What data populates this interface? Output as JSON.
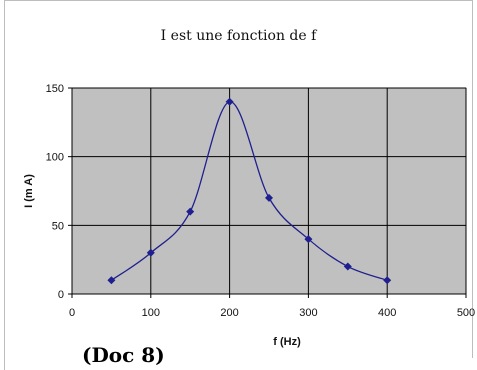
{
  "chart_data": {
    "type": "line",
    "title": "I est une fonction de f",
    "xlabel": "f (Hz)",
    "ylabel": "I (m A)",
    "xlim": [
      0,
      500
    ],
    "ylim": [
      0,
      150
    ],
    "xticks": [
      0,
      100,
      200,
      300,
      400,
      500
    ],
    "yticks": [
      0,
      50,
      100,
      150
    ],
    "grid": true,
    "smooth": true,
    "plot_background": "#c0c0c0",
    "series": [
      {
        "color": "#1f1f8f",
        "x": [
          50,
          100,
          150,
          200,
          250,
          300,
          350,
          400
        ],
        "y": [
          10,
          30,
          60,
          140,
          70,
          40,
          20,
          10
        ]
      }
    ]
  },
  "caption": "(Doc 8)"
}
